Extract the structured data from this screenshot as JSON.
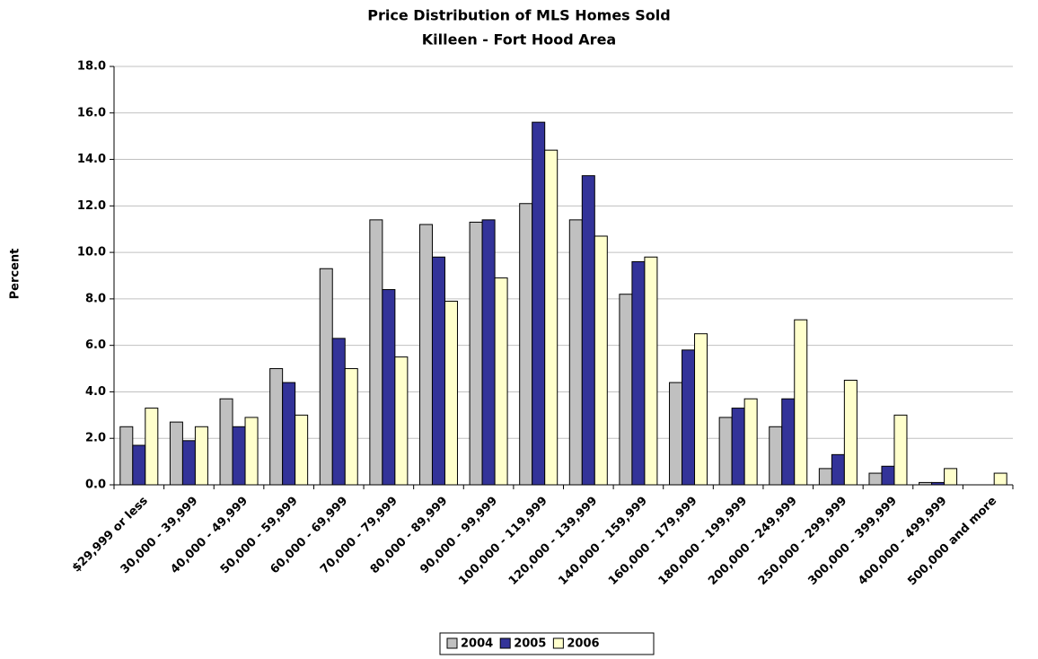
{
  "chart_data": {
    "type": "bar",
    "title": "Price Distribution of MLS Homes Sold",
    "subtitle": "Killeen - Fort Hood Area",
    "y_label": "Percent",
    "categories": [
      "$29,999 or less",
      "30,000 - 39,999",
      "40,000 - 49,999",
      "50,000 - 59,999",
      "60,000 - 69,999",
      "70,000 - 79,999",
      "80,000 - 89,999",
      "90,000 - 99,999",
      "100,000 - 119,999",
      "120,000 - 139,999",
      "140,000 - 159,999",
      "160,000 - 179,999",
      "180,000 - 199,999",
      "200,000 - 249,999",
      "250,000 - 299,999",
      "300,000 - 399,999",
      "400,000 - 499,999",
      "500,000 and more"
    ],
    "series": [
      {
        "name": "2004",
        "color": "#c0c0c0",
        "values": [
          2.5,
          2.7,
          3.7,
          5.0,
          9.3,
          11.4,
          11.2,
          11.3,
          12.1,
          11.4,
          8.2,
          4.4,
          2.9,
          2.5,
          0.7,
          0.5,
          0.1,
          0
        ]
      },
      {
        "name": "2005",
        "color": "#333399",
        "values": [
          1.7,
          1.9,
          2.5,
          4.4,
          6.3,
          8.4,
          9.8,
          11.4,
          15.6,
          13.3,
          9.6,
          5.8,
          3.3,
          3.7,
          1.3,
          0.8,
          0.1,
          0
        ]
      },
      {
        "name": "2006",
        "color": "#ffffcc",
        "values": [
          3.3,
          2.5,
          2.9,
          3.0,
          5.0,
          5.5,
          7.9,
          8.9,
          14.4,
          10.7,
          9.8,
          6.5,
          3.7,
          7.1,
          4.5,
          3.0,
          0.7,
          0.5
        ]
      }
    ],
    "ylim": [
      0,
      18
    ],
    "yticks": [
      {
        "value": 0,
        "label": "0.0"
      },
      {
        "value": 2,
        "label": "2.0"
      },
      {
        "value": 4,
        "label": "4.0"
      },
      {
        "value": 6,
        "label": "6.0"
      },
      {
        "value": 8,
        "label": "8.0"
      },
      {
        "value": 10,
        "label": "10.0"
      },
      {
        "value": 12,
        "label": "12.0"
      },
      {
        "value": 14,
        "label": "14.0"
      },
      {
        "value": 16,
        "label": "16.0"
      },
      {
        "value": 18,
        "label": "18.0"
      }
    ],
    "grid": true,
    "legend": "bottom"
  }
}
